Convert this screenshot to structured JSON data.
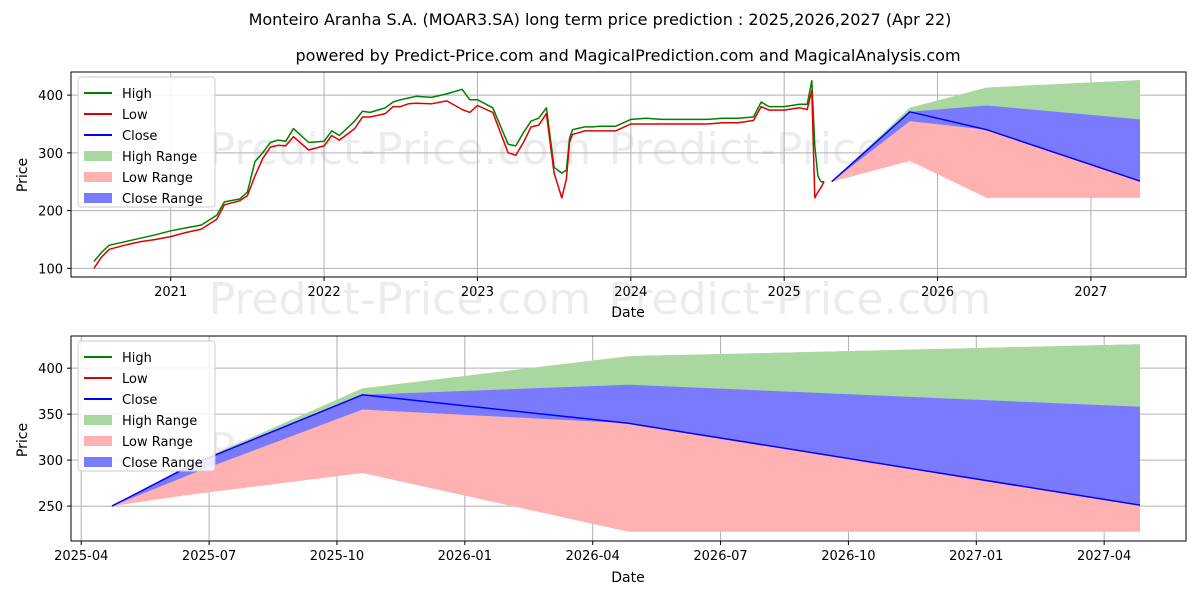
{
  "chart_data": [
    {
      "type": "line",
      "title": "Monteiro Aranha S.A. (MOAR3.SA) long term price prediction : 2025,2026,2027 (Apr 22)",
      "subtitle": "powered by Predict-Price.com and MagicalPrediction.com and MagicalAnalysis.com",
      "watermark": "Predict-Price.com",
      "xlabel": "Date",
      "ylabel": "Price",
      "xlim": [
        2020.35,
        2027.62
      ],
      "ylim": [
        85,
        440
      ],
      "x_ticks": [
        2021,
        2022,
        2023,
        2024,
        2025,
        2026,
        2027
      ],
      "x_tick_labels": [
        "2021",
        "2022",
        "2023",
        "2024",
        "2025",
        "2026",
        "2027"
      ],
      "y_ticks": [
        100,
        200,
        300,
        400
      ],
      "grid": true,
      "legend_position": "top-left",
      "legend": [
        "High",
        "Low",
        "Close",
        "High Range",
        "Low Range",
        "Close Range"
      ],
      "colors": {
        "high": "#008000",
        "low": "#e00000",
        "close": "#0000ff",
        "high_range": "#a8d8a0",
        "low_range": "#ffb0b0",
        "close_range": "#7a7aff"
      },
      "history": {
        "x": [
          2020.5,
          2020.55,
          2020.6,
          2020.7,
          2020.8,
          2020.9,
          2021.0,
          2021.1,
          2021.2,
          2021.3,
          2021.35,
          2021.45,
          2021.5,
          2021.55,
          2021.6,
          2021.65,
          2021.7,
          2021.75,
          2021.8,
          2021.9,
          2022.0,
          2022.05,
          2022.1,
          2022.2,
          2022.25,
          2022.3,
          2022.4,
          2022.45,
          2022.5,
          2022.55,
          2022.6,
          2022.7,
          2022.8,
          2022.9,
          2022.95,
          2023.0,
          2023.1,
          2023.2,
          2023.25,
          2023.3,
          2023.35,
          2023.4,
          2023.45,
          2023.5,
          2023.55,
          2023.58,
          2023.6,
          2023.62,
          2023.65,
          2023.7,
          2023.75,
          2023.8,
          2023.9,
          2024.0,
          2024.1,
          2024.2,
          2024.3,
          2024.4,
          2024.5,
          2024.6,
          2024.7,
          2024.8,
          2024.85,
          2024.9,
          2025.0,
          2025.1,
          2025.15,
          2025.18,
          2025.2,
          2025.22,
          2025.24,
          2025.26
        ],
        "high": [
          112,
          128,
          140,
          146,
          152,
          158,
          165,
          170,
          175,
          192,
          215,
          220,
          232,
          285,
          300,
          318,
          322,
          320,
          342,
          318,
          320,
          338,
          330,
          355,
          372,
          370,
          378,
          388,
          392,
          395,
          398,
          396,
          402,
          410,
          392,
          392,
          378,
          315,
          312,
          335,
          355,
          360,
          378,
          275,
          265,
          270,
          325,
          340,
          342,
          345,
          345,
          346,
          346,
          358,
          360,
          358,
          358,
          358,
          358,
          360,
          360,
          362,
          388,
          380,
          380,
          384,
          384,
          425,
          312,
          260,
          250,
          250
        ],
        "low": [
          100,
          120,
          133,
          140,
          146,
          150,
          155,
          162,
          168,
          185,
          210,
          217,
          226,
          260,
          290,
          310,
          313,
          312,
          328,
          305,
          312,
          330,
          322,
          342,
          362,
          362,
          368,
          380,
          380,
          385,
          386,
          385,
          390,
          375,
          370,
          382,
          370,
          300,
          296,
          318,
          345,
          348,
          368,
          265,
          222,
          255,
          318,
          332,
          334,
          338,
          338,
          338,
          338,
          350,
          350,
          350,
          350,
          350,
          350,
          352,
          352,
          356,
          380,
          374,
          374,
          378,
          375,
          408,
          222,
          232,
          240,
          250
        ]
      },
      "forecast": {
        "x": [
          2025.31,
          2025.82,
          2026.32,
          2027.32
        ],
        "close": [
          250,
          371,
          340,
          251
        ],
        "high_range": [
          250,
          378,
          413,
          426
        ],
        "low_range": [
          250,
          286,
          222,
          222
        ],
        "close_range_upper": [
          250,
          371,
          382,
          358
        ],
        "close_range_lower": [
          250,
          355,
          340,
          251
        ]
      }
    },
    {
      "type": "area",
      "xlabel": "Date",
      "ylabel": "Price",
      "xlim": [
        2025.23,
        2027.41
      ],
      "ylim": [
        212,
        435
      ],
      "x_ticks": [
        2025.25,
        2025.5,
        2025.75,
        2026.0,
        2026.25,
        2026.5,
        2026.75,
        2027.0,
        2027.25
      ],
      "x_tick_labels": [
        "2025-04",
        "2025-07",
        "2025-10",
        "2026-01",
        "2026-04",
        "2026-07",
        "2026-10",
        "2027-01",
        "2027-04"
      ],
      "y_ticks": [
        250,
        300,
        350,
        400
      ],
      "grid": true,
      "legend_position": "top-left",
      "legend": [
        "High",
        "Low",
        "Close",
        "High Range",
        "Low Range",
        "Close Range"
      ],
      "x": [
        2025.31,
        2025.47,
        2025.8,
        2026.32,
        2027.32
      ],
      "close": [
        250,
        296,
        371,
        340,
        251
      ],
      "high_range": [
        250,
        297,
        378,
        413,
        426
      ],
      "low_range": [
        250,
        263,
        286,
        222,
        222
      ],
      "close_range_upper": [
        250,
        297,
        371,
        382,
        358
      ],
      "close_range_lower": [
        250,
        286,
        355,
        340,
        251
      ]
    }
  ]
}
